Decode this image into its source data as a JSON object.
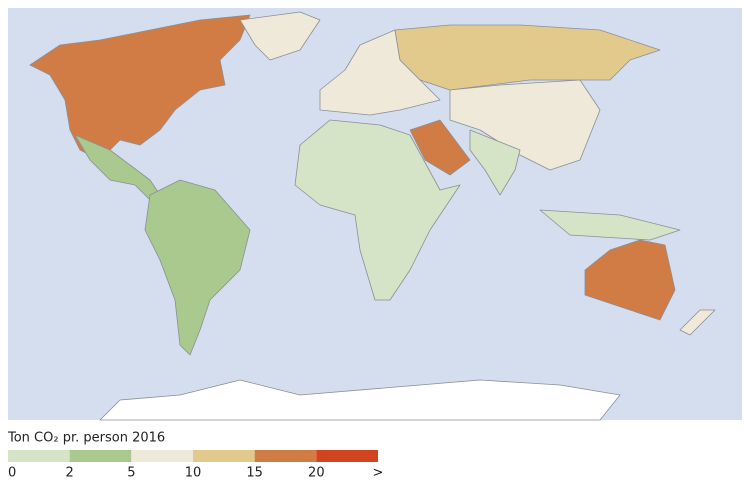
{
  "legend": {
    "title": "Ton CO₂ pr. person 2016",
    "colors": [
      "#d5e3c7",
      "#a9c98e",
      "#efe9da",
      "#e2ca8c",
      "#d17c45",
      "#d2431f"
    ],
    "ticks": [
      "0",
      "2",
      "5",
      "10",
      "15",
      "20",
      ">"
    ]
  }
}
